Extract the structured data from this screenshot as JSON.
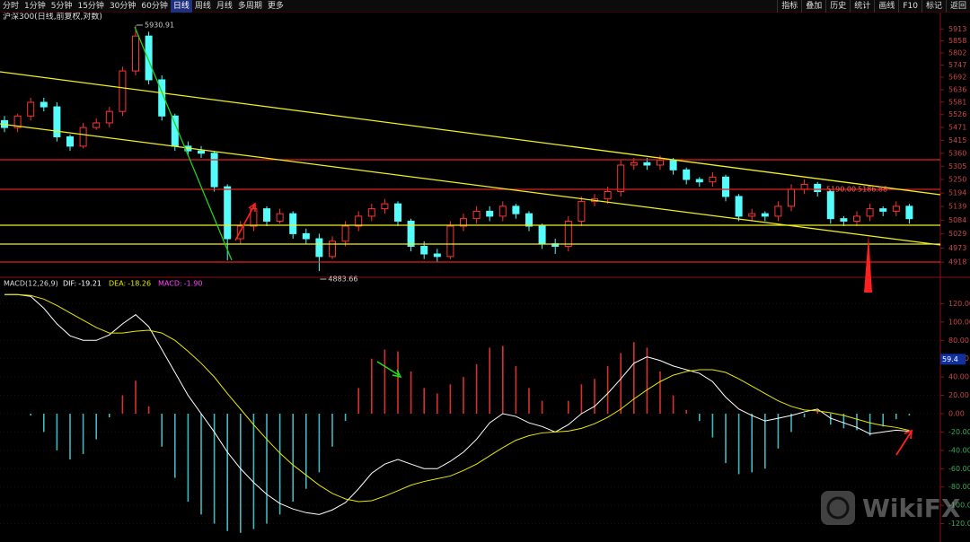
{
  "toolbar": {
    "periods": [
      "分时",
      "1分钟",
      "5分钟",
      "15分钟",
      "30分钟",
      "60分钟",
      "日线",
      "周线",
      "月线",
      "多周期",
      "更多"
    ],
    "tools": [
      "指标",
      "叠加",
      "历史",
      "统计",
      "画线",
      "F10",
      "标记",
      "返回"
    ]
  },
  "chart_data": [
    {
      "type": "candlestick",
      "title": "沪深300(日线,前复权,对数)",
      "open": [
        5500,
        5470,
        5520,
        5580,
        5560,
        5430,
        5390,
        5470,
        5490,
        5540,
        5720,
        5880,
        5680,
        5520,
        5390,
        5370,
        5360,
        5220,
        5010,
        5060,
        5130,
        5080,
        5110,
        5030,
        5010,
        4940,
        5000,
        5060,
        5100,
        5130,
        5150,
        5080,
        4980,
        4950,
        4940,
        5060,
        5090,
        5120,
        5100,
        5140,
        5110,
        5060,
        4990,
        4980,
        5080,
        5160,
        5170,
        5200,
        5310,
        5320,
        5310,
        5330,
        5290,
        5250,
        5240,
        5260,
        5180,
        5100,
        5110,
        5100,
        5140,
        5210,
        5230,
        5200,
        5090,
        5080,
        5100,
        5130,
        5120,
        5140
      ],
      "high": [
        5520,
        5530,
        5600,
        5600,
        5580,
        5440,
        5490,
        5510,
        5560,
        5740,
        5930.91,
        5900,
        5700,
        5530,
        5410,
        5390,
        5370,
        5230,
        5080,
        5150,
        5140,
        5130,
        5120,
        5050,
        5030,
        5020,
        5080,
        5120,
        5150,
        5170,
        5160,
        5090,
        5000,
        4970,
        5080,
        5110,
        5140,
        5140,
        5160,
        5150,
        5120,
        5070,
        5010,
        5100,
        5180,
        5190,
        5220,
        5330,
        5340,
        5340,
        5350,
        5340,
        5300,
        5260,
        5280,
        5270,
        5190,
        5130,
        5120,
        5160,
        5230,
        5250,
        5240,
        5210,
        5100,
        5120,
        5150,
        5140,
        5160,
        5150
      ],
      "low": [
        5450,
        5450,
        5500,
        5540,
        5410,
        5370,
        5380,
        5460,
        5470,
        5520,
        5700,
        5660,
        5500,
        5370,
        5350,
        5340,
        5200,
        4925,
        4990,
        5040,
        5060,
        5070,
        5010,
        4990,
        4883.66,
        4930,
        4980,
        5040,
        5080,
        5110,
        5060,
        4960,
        4930,
        4920,
        4930,
        5040,
        5070,
        5080,
        5080,
        5090,
        5040,
        4970,
        4950,
        4960,
        5060,
        5140,
        5150,
        5180,
        5290,
        5290,
        5290,
        5270,
        5230,
        5220,
        5220,
        5160,
        5080,
        5080,
        5080,
        5080,
        5120,
        5190,
        5180,
        5070,
        5060,
        5060,
        5080,
        5100,
        5100,
        5070
      ],
      "close": [
        5470,
        5520,
        5580,
        5560,
        5430,
        5390,
        5470,
        5490,
        5540,
        5720,
        5880,
        5680,
        5520,
        5390,
        5370,
        5360,
        5220,
        5010,
        5060,
        5130,
        5080,
        5110,
        5030,
        5010,
        4940,
        5000,
        5060,
        5100,
        5130,
        5150,
        5080,
        4980,
        4950,
        4940,
        5060,
        5090,
        5120,
        5100,
        5140,
        5110,
        5060,
        4990,
        4980,
        5080,
        5160,
        5170,
        5200,
        5310,
        5320,
        5310,
        5330,
        5290,
        5250,
        5240,
        5260,
        5180,
        5100,
        5110,
        5100,
        5140,
        5210,
        5230,
        5200,
        5090,
        5080,
        5100,
        5130,
        5120,
        5140,
        5090
      ],
      "up_color": "#ff3333",
      "down_color": "#54fcfc",
      "log_scale": true,
      "ylim": [
        4870,
        5990
      ],
      "yticks": [
        4918,
        4973,
        5029,
        5084,
        5139,
        5194,
        5250,
        5305,
        5360,
        5415,
        5471,
        5526,
        5581,
        5636,
        5692,
        5747,
        5802,
        5858,
        5913
      ],
      "annotations": [
        "5190.00",
        "5186.88"
      ]
    },
    {
      "type": "macd",
      "title": "MACD(12,26,9)",
      "series": [
        {
          "name": "DIF:",
          "color": "#ffffff",
          "values": [
            130,
            130,
            128,
            115,
            98,
            85,
            80,
            80,
            86,
            98,
            108,
            95,
            70,
            45,
            20,
            0,
            -20,
            -42,
            -60,
            -75,
            -88,
            -98,
            -104,
            -108,
            -110,
            -105,
            -97,
            -82,
            -65,
            -55,
            -50,
            -55,
            -60,
            -60,
            -52,
            -42,
            -28,
            -10,
            0,
            -3,
            -10,
            -14,
            -20,
            -12,
            0,
            8,
            22,
            38,
            55,
            62,
            58,
            52,
            48,
            44,
            35,
            18,
            5,
            -2,
            -8,
            -5,
            -2,
            2,
            5,
            -5,
            -10,
            -15,
            -22,
            -20,
            -18,
            -19.21
          ]
        },
        {
          "name": "DEA:",
          "color": "#e8e800",
          "values": [
            130,
            130,
            129,
            125,
            118,
            110,
            102,
            94,
            88,
            88,
            90,
            91,
            88,
            80,
            68,
            55,
            40,
            22,
            5,
            -12,
            -28,
            -43,
            -56,
            -67,
            -78,
            -87,
            -93,
            -96,
            -95,
            -90,
            -84,
            -78,
            -74,
            -71,
            -68,
            -62,
            -55,
            -46,
            -37,
            -29,
            -24,
            -21,
            -20,
            -19,
            -16,
            -11,
            -4,
            5,
            16,
            26,
            35,
            42,
            46,
            48,
            48,
            45,
            38,
            30,
            22,
            14,
            8,
            4,
            3,
            1,
            -2,
            -6,
            -10,
            -13,
            -15,
            -18.26
          ]
        },
        {
          "name": "MACD:",
          "color": "#ff44ff",
          "up_color": "#d83030",
          "down_color": "#40b8c0",
          "values": [
            0,
            0,
            -2,
            -20,
            -40,
            -50,
            -44,
            -28,
            -4,
            20,
            36,
            8,
            -36,
            -70,
            -96,
            -110,
            -120,
            -128,
            -130,
            -126,
            -120,
            -110,
            -96,
            -82,
            -64,
            -36,
            -8,
            28,
            60,
            70,
            68,
            46,
            28,
            22,
            32,
            40,
            54,
            72,
            74,
            52,
            28,
            14,
            0,
            14,
            32,
            38,
            52,
            66,
            78,
            72,
            46,
            20,
            4,
            -8,
            -26,
            -54,
            -66,
            -64,
            -60,
            -38,
            -20,
            -4,
            4,
            -12,
            -16,
            -18,
            -24,
            -14,
            -6,
            -1.9
          ],
          "value_labels": [
            null,
            null,
            null,
            null,
            null,
            null,
            null,
            null,
            null,
            null,
            null,
            null,
            null,
            null,
            null,
            null,
            null,
            null,
            null,
            null,
            null,
            null,
            null,
            null,
            null,
            null,
            null,
            null,
            null,
            null,
            null,
            null,
            null,
            null,
            null,
            null,
            null,
            null,
            null,
            null,
            null,
            null,
            null,
            null,
            null,
            null,
            null,
            null,
            null,
            null,
            null,
            null,
            null,
            null,
            null,
            null,
            null,
            null,
            null,
            null,
            null,
            null,
            null,
            null,
            null,
            null,
            null,
            null,
            null,
            "-1.90"
          ]
        }
      ],
      "ylim": [
        -141,
        140
      ],
      "yticks": [
        {
          "value": -120,
          "label": "-120.00"
        },
        {
          "value": -100,
          "label": "-100.00"
        },
        {
          "value": -80,
          "label": "-80.00"
        },
        {
          "value": -60,
          "label": "-60.00"
        },
        {
          "value": -40,
          "label": "-40.00"
        },
        {
          "value": -20,
          "label": "-20.00"
        },
        {
          "value": 0,
          "label": "0.00"
        },
        {
          "value": 20,
          "label": "20.00"
        },
        {
          "value": 40,
          "label": "40.00"
        },
        {
          "value": 60,
          "label": "60.00"
        },
        {
          "value": 80,
          "label": "80.00"
        },
        {
          "value": 100,
          "label": "100.00"
        },
        {
          "value": 120,
          "label": "120.00"
        }
      ],
      "cursor_value": 59.4
    }
  ],
  "watermark": "WikiFX"
}
